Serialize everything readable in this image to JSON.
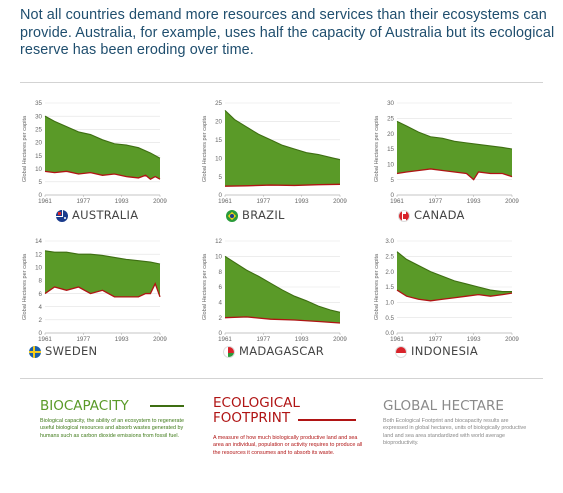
{
  "headline": "Not all countries demand more resources and services than their ecosystems can provide. Australia, for example, uses half the capacity of Australia but its ecological reserve has been eroding over time.",
  "colors": {
    "biocapacity": "#5a9a28",
    "biocapacity_line": "#3e6e12",
    "footprint": "#b01414",
    "headline": "#1f4e6e",
    "global_hectare": "#8a8a8a"
  },
  "chart_data": [
    {
      "type": "area",
      "country": "AUSTRALIA",
      "flag": "australia-flag-icon",
      "ylabel": "Global Hectares per capita",
      "xticks": [
        "1961",
        "1977",
        "1993",
        "2009"
      ],
      "yticks": [
        0,
        5,
        10,
        15,
        20,
        25,
        30,
        35
      ],
      "ylim": [
        0,
        35
      ],
      "xlim": [
        1961,
        2009
      ],
      "series": [
        {
          "name": "BIOCAPACITY",
          "x": [
            1961,
            1965,
            1970,
            1975,
            1980,
            1985,
            1990,
            1995,
            2000,
            2005,
            2007,
            2009
          ],
          "y": [
            30,
            28,
            26,
            24,
            23,
            21,
            19.5,
            19,
            18,
            16,
            15,
            14
          ]
        },
        {
          "name": "ECOLOGICAL FOOTPRINT",
          "x": [
            1961,
            1965,
            1970,
            1975,
            1980,
            1985,
            1990,
            1995,
            2000,
            2003,
            2005,
            2007,
            2009
          ],
          "y": [
            9,
            8.5,
            9,
            8,
            8.5,
            7.5,
            8,
            7,
            6.5,
            7.5,
            6,
            7,
            6
          ]
        }
      ]
    },
    {
      "type": "area",
      "country": "BRAZIL",
      "flag": "brazil-flag-icon",
      "ylabel": "Global Hectares per capita",
      "xticks": [
        "1961",
        "1977",
        "1993",
        "2009"
      ],
      "yticks": [
        0,
        5,
        10,
        15,
        20,
        25
      ],
      "ylim": [
        0,
        25
      ],
      "xlim": [
        1961,
        2009
      ],
      "series": [
        {
          "name": "BIOCAPACITY",
          "x": [
            1961,
            1965,
            1970,
            1975,
            1980,
            1985,
            1990,
            1995,
            2000,
            2005,
            2009
          ],
          "y": [
            23,
            20.5,
            18.5,
            16.5,
            15,
            13.5,
            12.5,
            11.5,
            11,
            10.2,
            9.6
          ]
        },
        {
          "name": "ECOLOGICAL FOOTPRINT",
          "x": [
            1961,
            1970,
            1980,
            1990,
            2000,
            2009
          ],
          "y": [
            2.4,
            2.5,
            2.7,
            2.6,
            2.8,
            2.9
          ]
        }
      ]
    },
    {
      "type": "area",
      "country": "CANADA",
      "flag": "canada-flag-icon",
      "ylabel": "Global Hectares per capita",
      "xticks": [
        "1961",
        "1977",
        "1993",
        "2009"
      ],
      "yticks": [
        0,
        5,
        10,
        15,
        20,
        25,
        30
      ],
      "ylim": [
        0,
        30
      ],
      "xlim": [
        1961,
        2009
      ],
      "series": [
        {
          "name": "BIOCAPACITY",
          "x": [
            1961,
            1965,
            1970,
            1975,
            1980,
            1985,
            1990,
            1995,
            2000,
            2005,
            2009
          ],
          "y": [
            24,
            22.5,
            20.5,
            19,
            18.5,
            17.5,
            17,
            16.5,
            16,
            15.5,
            15
          ]
        },
        {
          "name": "ECOLOGICAL FOOTPRINT",
          "x": [
            1961,
            1965,
            1970,
            1975,
            1980,
            1985,
            1990,
            1993,
            1995,
            2000,
            2005,
            2009
          ],
          "y": [
            7,
            7.5,
            8,
            8.5,
            8,
            7.5,
            7,
            5,
            7.5,
            7,
            7,
            6
          ]
        }
      ]
    },
    {
      "type": "area",
      "country": "SWEDEN",
      "flag": "sweden-flag-icon",
      "ylabel": "Global Hectares per capita",
      "xticks": [
        "1961",
        "1977",
        "1993",
        "2009"
      ],
      "yticks": [
        0,
        2,
        4,
        6,
        8,
        10,
        12,
        14
      ],
      "ylim": [
        0,
        14
      ],
      "xlim": [
        1961,
        2009
      ],
      "series": [
        {
          "name": "BIOCAPACITY",
          "x": [
            1961,
            1965,
            1970,
            1975,
            1980,
            1985,
            1990,
            1995,
            2000,
            2005,
            2009
          ],
          "y": [
            12.5,
            12.3,
            12.3,
            12,
            12,
            11.8,
            11.5,
            11.2,
            11,
            10.8,
            10.5
          ]
        },
        {
          "name": "ECOLOGICAL FOOTPRINT",
          "x": [
            1961,
            1965,
            1970,
            1975,
            1980,
            1985,
            1990,
            1995,
            2000,
            2003,
            2005,
            2007,
            2009
          ],
          "y": [
            6,
            7,
            6.5,
            7,
            6,
            6.5,
            5.5,
            5.5,
            5.5,
            6,
            6,
            7.5,
            5.5
          ]
        }
      ]
    },
    {
      "type": "area",
      "country": "MADAGASCAR",
      "flag": "madagascar-flag-icon",
      "ylabel": "Global Hectares per capita",
      "xticks": [
        "1961",
        "1977",
        "1993",
        "2009"
      ],
      "yticks": [
        0,
        2,
        4,
        6,
        8,
        10,
        12
      ],
      "ylim": [
        0,
        12
      ],
      "xlim": [
        1961,
        2009
      ],
      "series": [
        {
          "name": "BIOCAPACITY",
          "x": [
            1961,
            1965,
            1970,
            1975,
            1980,
            1985,
            1990,
            1995,
            2000,
            2005,
            2009
          ],
          "y": [
            10,
            9.2,
            8.2,
            7.4,
            6.5,
            5.6,
            4.8,
            4.2,
            3.5,
            3,
            2.7
          ]
        },
        {
          "name": "ECOLOGICAL FOOTPRINT",
          "x": [
            1961,
            1970,
            1980,
            1990,
            2000,
            2009
          ],
          "y": [
            2,
            2.1,
            1.8,
            1.7,
            1.5,
            1.3
          ]
        }
      ]
    },
    {
      "type": "area",
      "country": "INDONESIA",
      "flag": "indonesia-flag-icon",
      "ylabel": "Global Hectares per capita",
      "xticks": [
        "1961",
        "1977",
        "1993",
        "2009"
      ],
      "yticks": [
        0,
        0.5,
        1.0,
        1.5,
        2.0,
        2.5,
        3.0
      ],
      "ylim": [
        0,
        3
      ],
      "xlim": [
        1961,
        2009
      ],
      "series": [
        {
          "name": "BIOCAPACITY",
          "x": [
            1961,
            1965,
            1970,
            1975,
            1980,
            1985,
            1990,
            1995,
            2000,
            2005,
            2009
          ],
          "y": [
            2.65,
            2.4,
            2.2,
            2.0,
            1.85,
            1.7,
            1.6,
            1.5,
            1.4,
            1.35,
            1.35
          ]
        },
        {
          "name": "ECOLOGICAL FOOTPRINT",
          "x": [
            1961,
            1965,
            1970,
            1975,
            1980,
            1985,
            1990,
            1995,
            2000,
            2005,
            2009
          ],
          "y": [
            1.4,
            1.2,
            1.1,
            1.05,
            1.1,
            1.15,
            1.2,
            1.25,
            1.2,
            1.25,
            1.3
          ]
        }
      ]
    }
  ],
  "legend": {
    "biocapacity": {
      "title": "BIOCAPACITY",
      "desc": "Biological capacity, the ability of an ecosystem to regenerate useful biological resources and absorb wastes generated by humans such as carbon dioxide emissions from fossil fuel."
    },
    "footprint": {
      "title_line1": "ECOLOGICAL",
      "title_line2": "FOOTPRINT",
      "desc": "A measure of how much biologically productive land and sea area an individual, population or activity requires to produce all the resources it consumes and to absorb its waste."
    },
    "global_hectare": {
      "title": "GLOBAL HECTARE",
      "desc": "Both Ecological Footprint and biocapacity results are expressed in global hectares, units of biologically productive land and sea area standardized with world average bioproductivity."
    }
  }
}
